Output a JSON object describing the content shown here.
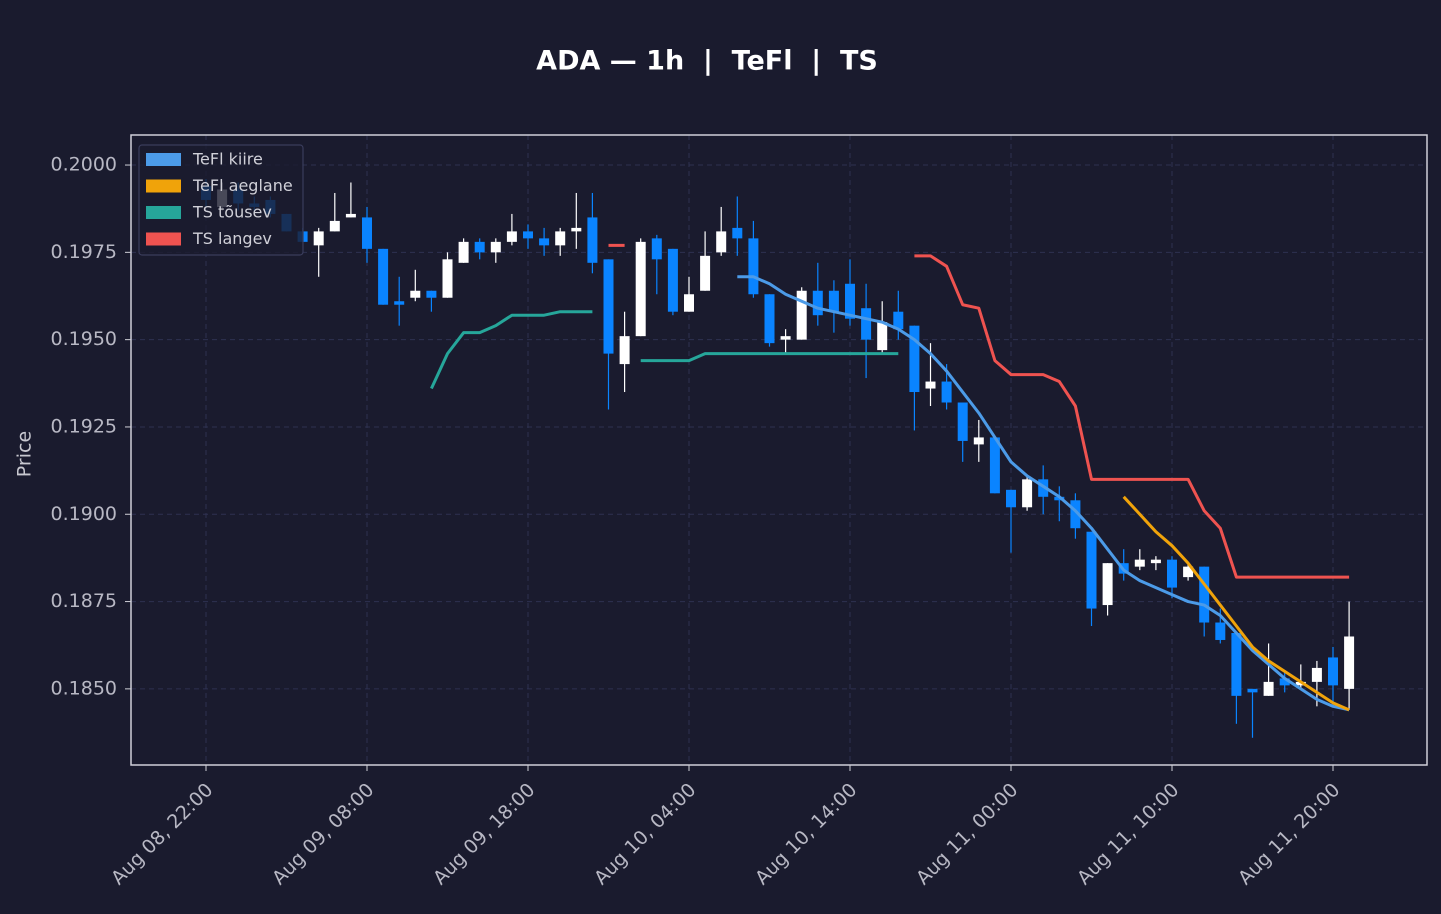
{
  "chart_data": {
    "type": "candlestick",
    "title": "ADA — 1h  |  TeFl  |  TS",
    "ylabel": "Price",
    "categories": [
      "Aug 08, 22:00",
      null,
      null,
      null,
      null,
      null,
      null,
      null,
      null,
      null,
      "Aug 09, 08:00",
      null,
      null,
      null,
      null,
      null,
      null,
      null,
      null,
      null,
      "Aug 09, 18:00",
      null,
      null,
      null,
      null,
      null,
      null,
      null,
      null,
      null,
      "Aug 10, 04:00",
      null,
      null,
      null,
      null,
      null,
      null,
      null,
      null,
      null,
      "Aug 10, 14:00",
      null,
      null,
      null,
      null,
      null,
      null,
      null,
      null,
      null,
      "Aug 11, 00:00",
      null,
      null,
      null,
      null,
      null,
      null,
      null,
      null,
      null,
      "Aug 11, 10:00",
      null,
      null,
      null,
      null,
      null,
      null,
      null,
      null,
      null,
      "Aug 11, 20:00",
      null
    ],
    "open": [
      0.1994,
      0.1988,
      0.1993,
      0.1989,
      0.199,
      0.1986,
      0.1981,
      0.1977,
      0.1981,
      0.1985,
      0.1985,
      0.1976,
      0.1961,
      0.1962,
      0.1964,
      0.1962,
      0.1972,
      0.1978,
      0.1975,
      0.1978,
      0.1981,
      0.1979,
      0.1977,
      0.1981,
      0.1985,
      0.1973,
      0.1943,
      0.1951,
      0.1979,
      0.1976,
      0.1958,
      0.1964,
      0.1975,
      0.1982,
      0.1979,
      0.1963,
      0.195,
      0.195,
      0.1964,
      0.1964,
      0.1966,
      0.1959,
      0.1947,
      0.1958,
      0.1954,
      0.1936,
      0.1938,
      0.1932,
      0.192,
      0.1922,
      0.1907,
      0.1902,
      0.191,
      0.1905,
      0.1904,
      0.1895,
      0.1874,
      0.1886,
      0.1885,
      0.1886,
      0.1887,
      0.1882,
      0.1885,
      0.1869,
      0.1866,
      0.185,
      0.1848,
      0.1853,
      0.1851,
      0.1852,
      0.1859,
      0.185
    ],
    "high": [
      0.1996,
      0.1995,
      0.1995,
      0.1991,
      0.1991,
      0.1986,
      0.1982,
      0.1982,
      0.1992,
      0.1995,
      0.1988,
      0.1976,
      0.1968,
      0.197,
      0.1964,
      0.1975,
      0.1979,
      0.1979,
      0.1979,
      0.1986,
      0.1983,
      0.1982,
      0.1982,
      0.1992,
      0.1992,
      0.1973,
      0.1958,
      0.1979,
      0.198,
      0.1976,
      0.1968,
      0.1981,
      0.1988,
      0.1991,
      0.1984,
      0.1963,
      0.1953,
      0.1965,
      0.1972,
      0.1967,
      0.1973,
      0.1966,
      0.1961,
      0.1964,
      0.1954,
      0.1949,
      0.1943,
      0.1932,
      0.1927,
      0.1922,
      0.1907,
      0.1911,
      0.1914,
      0.1908,
      0.1906,
      0.1895,
      0.1886,
      0.189,
      0.189,
      0.1888,
      0.1888,
      0.1886,
      0.1885,
      0.1873,
      0.1866,
      0.185,
      0.1863,
      0.1855,
      0.1857,
      0.1858,
      0.1862,
      0.1875
    ],
    "low": [
      0.1988,
      0.1987,
      0.1987,
      0.1986,
      0.1985,
      0.1981,
      0.1978,
      0.1968,
      0.1981,
      0.1985,
      0.1972,
      0.196,
      0.1954,
      0.1961,
      0.1958,
      0.1962,
      0.1972,
      0.1973,
      0.1972,
      0.1977,
      0.1976,
      0.1974,
      0.1974,
      0.1976,
      0.1969,
      0.193,
      0.1935,
      0.1951,
      0.1963,
      0.1957,
      0.1958,
      0.1964,
      0.1974,
      0.1974,
      0.1962,
      0.1948,
      0.1946,
      0.195,
      0.1954,
      0.1952,
      0.1954,
      0.1939,
      0.1946,
      0.195,
      0.1924,
      0.1931,
      0.193,
      0.1915,
      0.1915,
      0.1906,
      0.1889,
      0.1901,
      0.19,
      0.1898,
      0.1893,
      0.1868,
      0.1871,
      0.1881,
      0.1884,
      0.1884,
      0.1876,
      0.1881,
      0.1865,
      0.1863,
      0.184,
      0.1836,
      0.1848,
      0.1849,
      0.185,
      0.1845,
      0.1845,
      0.1844
    ],
    "close": [
      0.199,
      0.1993,
      0.1989,
      0.1988,
      0.1986,
      0.1981,
      0.1978,
      0.1981,
      0.1984,
      0.1986,
      0.1976,
      0.196,
      0.196,
      0.1964,
      0.1962,
      0.1973,
      0.1978,
      0.1975,
      0.1978,
      0.1981,
      0.1979,
      0.1977,
      0.1981,
      0.1982,
      0.1972,
      0.1946,
      0.1951,
      0.1978,
      0.1973,
      0.1958,
      0.1963,
      0.1974,
      0.1981,
      0.1979,
      0.1963,
      0.1949,
      0.1951,
      0.1964,
      0.1957,
      0.1958,
      0.1956,
      0.195,
      0.1955,
      0.1953,
      0.1935,
      0.1938,
      0.1932,
      0.1921,
      0.1922,
      0.1906,
      0.1902,
      0.191,
      0.1905,
      0.1904,
      0.1896,
      0.1873,
      0.1886,
      0.1883,
      0.1887,
      0.1887,
      0.1879,
      0.1885,
      0.1869,
      0.1864,
      0.1848,
      0.1849,
      0.1852,
      0.1851,
      0.1852,
      0.1856,
      0.1851,
      0.1865
    ],
    "up_color": "#ffffff",
    "down_color": "#0a84ff",
    "series": [
      {
        "name": "TeFl kiire",
        "color": "#4c9be8",
        "values": [
          null,
          null,
          null,
          null,
          null,
          null,
          null,
          null,
          null,
          null,
          null,
          null,
          null,
          null,
          null,
          null,
          null,
          null,
          null,
          null,
          null,
          null,
          null,
          null,
          null,
          null,
          null,
          null,
          null,
          null,
          null,
          null,
          null,
          0.1968,
          0.1968,
          0.1966,
          0.1963,
          0.1961,
          0.1959,
          0.1958,
          0.1957,
          0.1956,
          0.1955,
          0.1953,
          0.195,
          0.1946,
          0.1941,
          0.1935,
          0.1929,
          0.1922,
          0.1915,
          0.1911,
          0.1908,
          0.1905,
          0.1901,
          0.1896,
          0.189,
          0.1884,
          0.1881,
          0.1879,
          0.1877,
          0.1875,
          0.1874,
          0.1871,
          0.1866,
          0.1861,
          0.1857,
          0.1853,
          0.185,
          0.1847,
          0.1845,
          0.1844
        ]
      },
      {
        "name": "TeFl aeglane",
        "color": "#f0a30a",
        "values": [
          null,
          null,
          null,
          null,
          null,
          null,
          null,
          null,
          null,
          null,
          null,
          null,
          null,
          null,
          null,
          null,
          null,
          null,
          null,
          null,
          null,
          null,
          null,
          null,
          null,
          null,
          null,
          null,
          null,
          null,
          null,
          null,
          null,
          null,
          null,
          null,
          null,
          null,
          null,
          null,
          null,
          null,
          null,
          null,
          null,
          null,
          null,
          null,
          null,
          null,
          null,
          null,
          null,
          null,
          null,
          null,
          null,
          0.1905,
          0.19,
          0.1895,
          0.1891,
          0.1886,
          0.188,
          0.1874,
          0.1868,
          0.1862,
          0.1858,
          0.1855,
          0.1852,
          0.1849,
          0.1846,
          0.1844
        ]
      },
      {
        "name": "TS tõusev",
        "color": "#26a69a",
        "values": [
          null,
          null,
          null,
          null,
          null,
          null,
          null,
          null,
          null,
          null,
          null,
          null,
          null,
          null,
          0.1936,
          0.1946,
          0.1952,
          0.1952,
          0.1954,
          0.1957,
          0.1957,
          0.1957,
          0.1958,
          0.1958,
          0.1958,
          null,
          null,
          0.1944,
          0.1944,
          0.1944,
          0.1944,
          0.1946,
          0.1946,
          0.1946,
          0.1946,
          0.1946,
          0.1946,
          0.1946,
          0.1946,
          0.1946,
          0.1946,
          0.1946,
          0.1946,
          0.1946,
          null,
          null,
          null,
          null,
          null,
          null,
          null,
          null,
          null,
          null,
          null,
          null,
          null,
          null,
          null,
          null,
          null,
          null,
          null,
          null,
          null,
          null,
          null,
          null,
          null,
          null,
          null,
          null
        ]
      },
      {
        "name": "TS langev",
        "color": "#ef5350",
        "values": [
          null,
          null,
          null,
          null,
          null,
          null,
          null,
          null,
          null,
          null,
          null,
          null,
          null,
          null,
          null,
          null,
          null,
          null,
          null,
          null,
          null,
          null,
          null,
          null,
          null,
          0.1977,
          0.1977,
          null,
          null,
          null,
          null,
          null,
          null,
          null,
          null,
          null,
          null,
          null,
          null,
          null,
          null,
          null,
          null,
          null,
          0.1974,
          0.1974,
          0.1971,
          0.196,
          0.1959,
          0.1944,
          0.194,
          0.194,
          0.194,
          0.1938,
          0.1931,
          0.191,
          0.191,
          0.191,
          0.191,
          0.191,
          0.191,
          0.191,
          0.1901,
          0.1896,
          0.1882,
          0.1882,
          0.1882,
          0.1882,
          0.1882,
          0.1882,
          0.1882,
          0.1882
        ]
      }
    ],
    "ylim": [
      0.18282,
      0.20086
    ],
    "yticks": [
      {
        "value": 0.2,
        "label": "0.2000"
      },
      0.1975,
      {
        "value": 0.195,
        "label": "0.1950"
      },
      0.1925,
      {
        "value": 0.19,
        "label": "0.1900"
      },
      0.1875,
      {
        "value": 0.185,
        "label": "0.1850"
      }
    ],
    "grid": true,
    "legend": "upper left"
  }
}
